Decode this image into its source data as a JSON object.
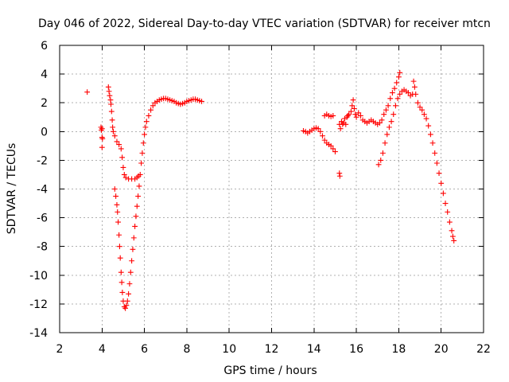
{
  "chart_data": {
    "type": "scatter",
    "title": "Day 046 of 2022, Sidereal Day-to-day VTEC variation (SDTVAR) for receiver mtcn",
    "xlabel": "GPS time / hours",
    "ylabel": "SDTVAR / TECUs",
    "xlim": [
      2,
      22
    ],
    "ylim": [
      -14,
      6
    ],
    "xticks": [
      2,
      4,
      6,
      8,
      10,
      12,
      14,
      16,
      18,
      20,
      22
    ],
    "yticks": [
      6,
      4,
      2,
      0,
      -2,
      -4,
      -6,
      -8,
      -10,
      -12,
      -14
    ],
    "grid": true,
    "marker": "plus",
    "color": "#ff0000",
    "series": [
      {
        "name": "SDTVAR",
        "points": [
          [
            3.3,
            2.75
          ],
          [
            3.95,
            0.3
          ],
          [
            3.97,
            0.1
          ],
          [
            4.0,
            0.2
          ],
          [
            4.0,
            -0.4
          ],
          [
            4.0,
            -1.1
          ],
          [
            4.02,
            -0.5
          ],
          [
            4.3,
            3.1
          ],
          [
            4.33,
            2.8
          ],
          [
            4.36,
            2.5
          ],
          [
            4.4,
            2.2
          ],
          [
            4.42,
            1.9
          ],
          [
            4.45,
            1.4
          ],
          [
            4.48,
            0.8
          ],
          [
            4.5,
            0.3
          ],
          [
            4.53,
            0.0
          ],
          [
            4.6,
            -0.3
          ],
          [
            4.7,
            -0.7
          ],
          [
            4.8,
            -0.9
          ],
          [
            4.9,
            -1.2
          ],
          [
            4.95,
            -1.8
          ],
          [
            5.0,
            -2.5
          ],
          [
            5.05,
            -3.0
          ],
          [
            5.12,
            -3.2
          ],
          [
            5.25,
            -3.3
          ],
          [
            5.4,
            -3.3
          ],
          [
            5.55,
            -3.3
          ],
          [
            5.65,
            -3.2
          ],
          [
            5.72,
            -3.1
          ],
          [
            4.6,
            -4.0
          ],
          [
            4.65,
            -4.5
          ],
          [
            4.7,
            -5.1
          ],
          [
            4.73,
            -5.6
          ],
          [
            4.76,
            -6.3
          ],
          [
            4.8,
            -7.2
          ],
          [
            4.83,
            -8.0
          ],
          [
            4.86,
            -8.8
          ],
          [
            4.9,
            -9.8
          ],
          [
            4.93,
            -10.5
          ],
          [
            4.96,
            -11.2
          ],
          [
            5.0,
            -11.8
          ],
          [
            5.05,
            -12.2
          ],
          [
            5.1,
            -12.3
          ],
          [
            5.15,
            -12.1
          ],
          [
            5.2,
            -11.8
          ],
          [
            5.25,
            -11.3
          ],
          [
            5.3,
            -10.6
          ],
          [
            5.35,
            -9.8
          ],
          [
            5.4,
            -9.0
          ],
          [
            5.45,
            -8.2
          ],
          [
            5.5,
            -7.4
          ],
          [
            5.55,
            -6.6
          ],
          [
            5.6,
            -5.9
          ],
          [
            5.65,
            -5.2
          ],
          [
            5.7,
            -4.5
          ],
          [
            5.75,
            -3.8
          ],
          [
            5.8,
            -3.0
          ],
          [
            5.85,
            -2.2
          ],
          [
            5.9,
            -1.5
          ],
          [
            5.95,
            -0.8
          ],
          [
            6.0,
            -0.2
          ],
          [
            6.05,
            0.3
          ],
          [
            6.1,
            0.7
          ],
          [
            6.2,
            1.1
          ],
          [
            6.3,
            1.5
          ],
          [
            6.4,
            1.8
          ],
          [
            6.5,
            2.0
          ],
          [
            6.6,
            2.1
          ],
          [
            6.7,
            2.2
          ],
          [
            6.8,
            2.25
          ],
          [
            6.9,
            2.3
          ],
          [
            7.0,
            2.3
          ],
          [
            7.1,
            2.25
          ],
          [
            7.2,
            2.2
          ],
          [
            7.3,
            2.15
          ],
          [
            7.4,
            2.1
          ],
          [
            7.5,
            2.0
          ],
          [
            7.6,
            1.95
          ],
          [
            7.7,
            1.9
          ],
          [
            7.8,
            1.95
          ],
          [
            7.9,
            2.0
          ],
          [
            8.0,
            2.1
          ],
          [
            8.1,
            2.15
          ],
          [
            8.2,
            2.2
          ],
          [
            8.3,
            2.25
          ],
          [
            8.4,
            2.25
          ],
          [
            8.5,
            2.2
          ],
          [
            8.6,
            2.15
          ],
          [
            8.7,
            2.1
          ],
          [
            13.5,
            0.05
          ],
          [
            13.6,
            0.0
          ],
          [
            13.7,
            -0.1
          ],
          [
            13.8,
            0.0
          ],
          [
            13.9,
            0.1
          ],
          [
            14.0,
            0.2
          ],
          [
            14.1,
            0.25
          ],
          [
            14.2,
            0.2
          ],
          [
            14.3,
            0.0
          ],
          [
            14.4,
            -0.3
          ],
          [
            14.5,
            -0.6
          ],
          [
            14.6,
            -0.8
          ],
          [
            14.7,
            -0.9
          ],
          [
            14.8,
            -1.0
          ],
          [
            14.9,
            -1.2
          ],
          [
            15.0,
            -1.4
          ],
          [
            14.5,
            1.1
          ],
          [
            14.6,
            1.2
          ],
          [
            14.7,
            1.1
          ],
          [
            14.8,
            1.05
          ],
          [
            14.9,
            1.1
          ],
          [
            15.2,
            -2.9
          ],
          [
            15.22,
            -3.1
          ],
          [
            15.2,
            0.5
          ],
          [
            15.25,
            0.2
          ],
          [
            15.3,
            0.7
          ],
          [
            15.35,
            0.5
          ],
          [
            15.4,
            0.6
          ],
          [
            15.45,
            0.9
          ],
          [
            15.5,
            0.5
          ],
          [
            15.55,
            1.0
          ],
          [
            15.6,
            1.1
          ],
          [
            15.65,
            1.2
          ],
          [
            15.75,
            1.4
          ],
          [
            15.8,
            1.8
          ],
          [
            15.85,
            2.2
          ],
          [
            15.9,
            1.6
          ],
          [
            15.95,
            1.2
          ],
          [
            16.0,
            1.0
          ],
          [
            16.1,
            1.3
          ],
          [
            16.2,
            1.1
          ],
          [
            16.3,
            0.8
          ],
          [
            16.4,
            0.7
          ],
          [
            16.5,
            0.6
          ],
          [
            16.6,
            0.7
          ],
          [
            16.7,
            0.8
          ],
          [
            16.8,
            0.7
          ],
          [
            16.9,
            0.6
          ],
          [
            17.0,
            0.5
          ],
          [
            17.1,
            0.6
          ],
          [
            17.2,
            0.8
          ],
          [
            17.3,
            1.2
          ],
          [
            17.4,
            1.5
          ],
          [
            17.5,
            1.8
          ],
          [
            17.6,
            2.3
          ],
          [
            17.7,
            2.7
          ],
          [
            17.8,
            3.0
          ],
          [
            17.9,
            3.4
          ],
          [
            18.0,
            3.8
          ],
          [
            18.05,
            4.1
          ],
          [
            17.05,
            -2.3
          ],
          [
            17.15,
            -2.0
          ],
          [
            17.25,
            -1.5
          ],
          [
            17.35,
            -0.8
          ],
          [
            17.45,
            -0.2
          ],
          [
            17.55,
            0.3
          ],
          [
            17.65,
            0.7
          ],
          [
            17.75,
            1.2
          ],
          [
            17.85,
            1.8
          ],
          [
            17.95,
            2.3
          ],
          [
            18.05,
            2.6
          ],
          [
            18.15,
            2.8
          ],
          [
            18.25,
            2.9
          ],
          [
            18.35,
            2.8
          ],
          [
            18.45,
            2.7
          ],
          [
            18.55,
            2.5
          ],
          [
            18.65,
            2.6
          ],
          [
            18.7,
            3.5
          ],
          [
            18.75,
            3.1
          ],
          [
            18.8,
            2.6
          ],
          [
            18.9,
            2.0
          ],
          [
            19.0,
            1.7
          ],
          [
            19.1,
            1.5
          ],
          [
            19.2,
            1.2
          ],
          [
            19.3,
            0.9
          ],
          [
            19.4,
            0.4
          ],
          [
            19.5,
            -0.2
          ],
          [
            19.6,
            -0.8
          ],
          [
            19.7,
            -1.5
          ],
          [
            19.8,
            -2.2
          ],
          [
            19.9,
            -2.9
          ],
          [
            20.0,
            -3.6
          ],
          [
            20.1,
            -4.3
          ],
          [
            20.2,
            -5.0
          ],
          [
            20.3,
            -5.6
          ],
          [
            20.4,
            -6.3
          ],
          [
            20.5,
            -6.9
          ],
          [
            20.55,
            -7.3
          ],
          [
            20.6,
            -7.6
          ]
        ]
      }
    ]
  }
}
